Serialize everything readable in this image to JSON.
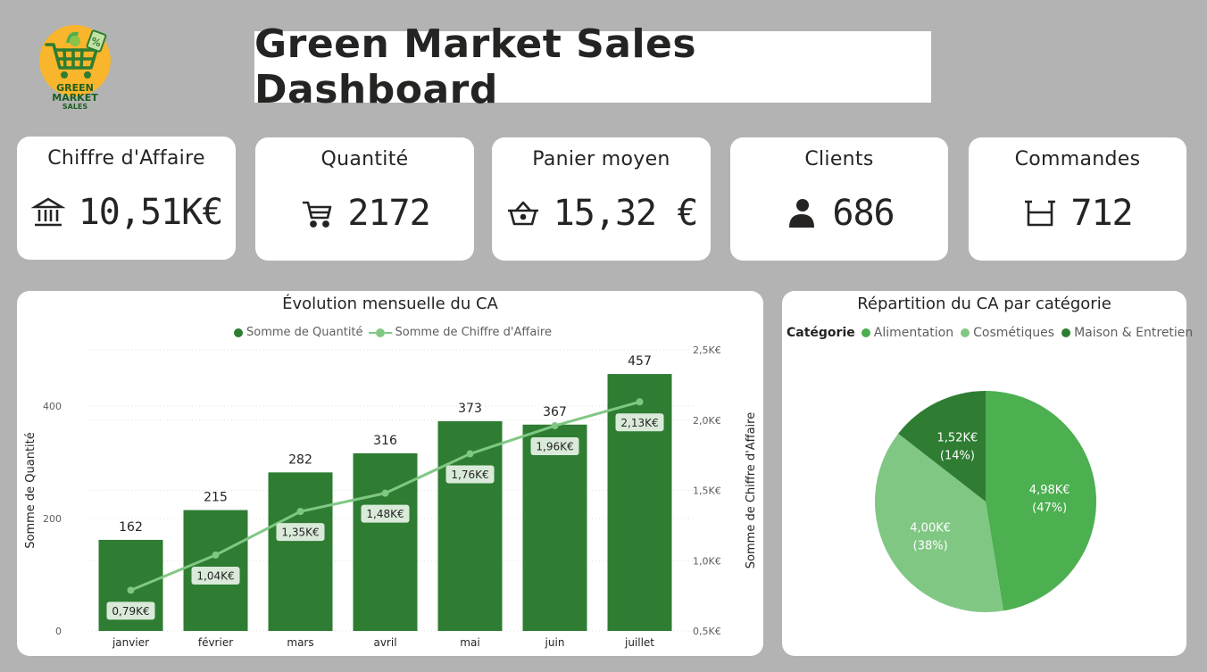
{
  "dashboard": {
    "title": "Green Market Sales Dashboard"
  },
  "logo": {
    "line1": "GREEN",
    "line2": "MARKET",
    "line3": "SALES",
    "badge": "%"
  },
  "colors": {
    "dark_green": "#2e7d32",
    "mid_green": "#4caf50",
    "light_green": "#81c784",
    "background": "#b3b3b3"
  },
  "kpis": [
    {
      "label": "Chiffre d'Affaire",
      "value": "10,51K€",
      "icon": "bank-icon"
    },
    {
      "label": "Quantité",
      "value": "2172",
      "icon": "cart-icon"
    },
    {
      "label": "Panier moyen",
      "value": "15,32 €",
      "icon": "basket-icon"
    },
    {
      "label": "Clients",
      "value": "686",
      "icon": "person-icon"
    },
    {
      "label": "Commandes",
      "value": "712",
      "icon": "box-icon"
    }
  ],
  "chart_data": [
    {
      "type": "bar",
      "title": "Évolution mensuelle du CA",
      "legend": [
        "Somme de Quantité",
        "Somme de Chiffre d'Affaire"
      ],
      "legend_position": "top",
      "categories": [
        "janvier",
        "février",
        "mars",
        "avril",
        "mai",
        "juin",
        "juillet"
      ],
      "series": [
        {
          "name": "Somme de Quantité",
          "type": "bar",
          "axis": "left",
          "values": [
            162,
            215,
            282,
            316,
            373,
            367,
            457
          ],
          "labels": [
            "162",
            "215",
            "282",
            "316",
            "373",
            "367",
            "457"
          ]
        },
        {
          "name": "Somme de Chiffre d'Affaire",
          "type": "line",
          "axis": "right",
          "values": [
            0.79,
            1.04,
            1.35,
            1.48,
            1.76,
            1.96,
            2.13
          ],
          "labels": [
            "0,79K€",
            "1,04K€",
            "1,35K€",
            "1,48K€",
            "1,76K€",
            "1,96K€",
            "2,13K€"
          ]
        }
      ],
      "ylabel": "Somme de Quantité",
      "y2label": "Somme de Chiffre d'Affaire",
      "ylim": [
        0,
        500
      ],
      "y2lim": [
        0.5,
        2.5
      ],
      "yticks": [
        0,
        200,
        400
      ],
      "ytick_labels": [
        "0",
        "200",
        "400"
      ],
      "y2ticks": [
        0.5,
        1.0,
        1.5,
        2.0,
        2.5
      ],
      "y2tick_labels": [
        "0,5K€",
        "1,0K€",
        "1,5K€",
        "2,0K€",
        "2,5K€"
      ],
      "grid": true
    },
    {
      "type": "pie",
      "title": "Répartition du CA par catégorie",
      "legend_title": "Catégorie",
      "legend_position": "top",
      "categories": [
        "Alimentation",
        "Cosmétiques",
        "Maison & Entretien"
      ],
      "values": [
        4.98,
        4.0,
        1.52
      ],
      "labels": [
        "4,98K€",
        "4,00K€",
        "1,52K€"
      ],
      "percent_labels": [
        "(47%)",
        "(38%)",
        "(14%)"
      ],
      "colors": [
        "#4caf50",
        "#81c784",
        "#2e7d32"
      ]
    }
  ]
}
